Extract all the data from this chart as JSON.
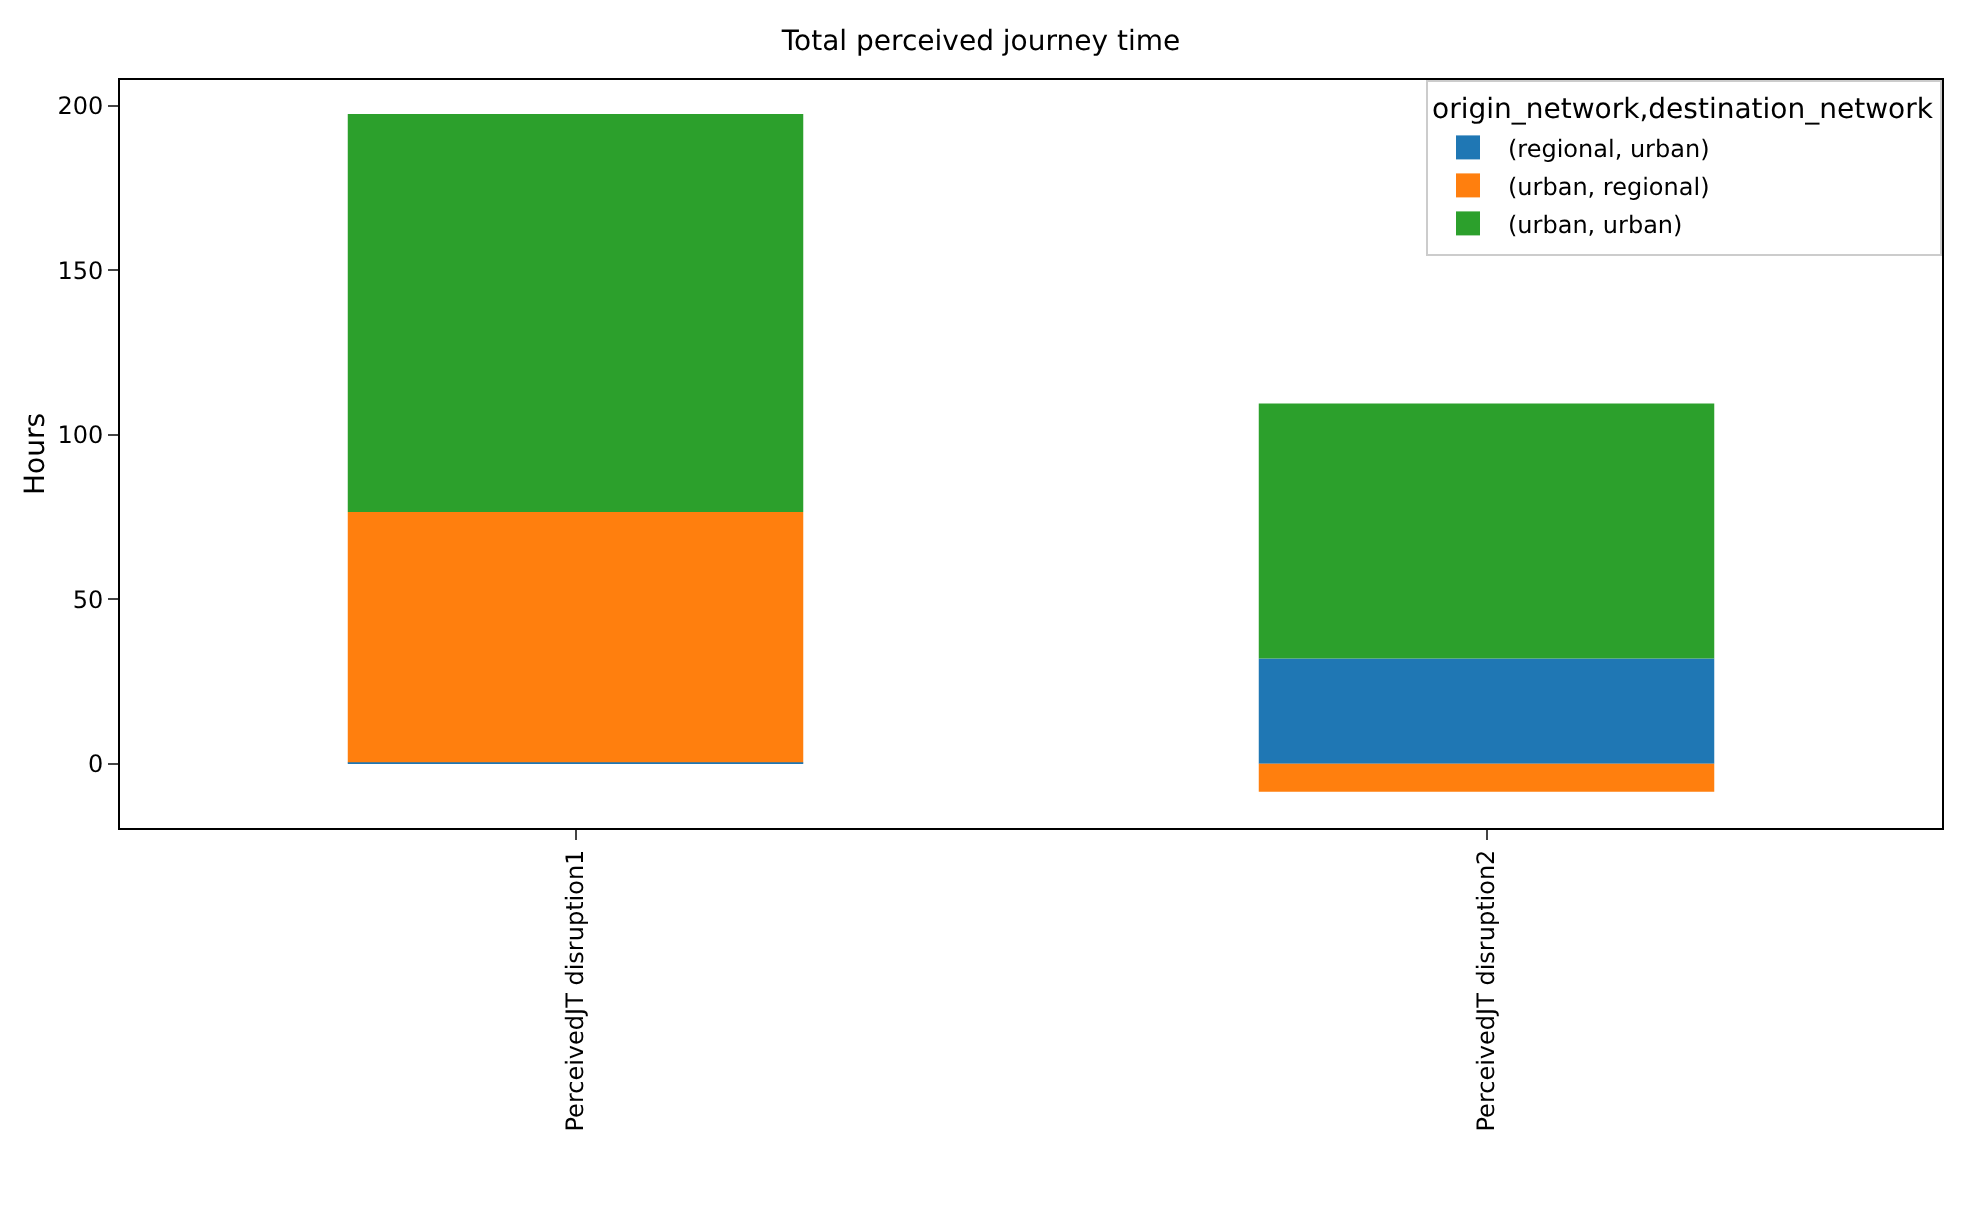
{
  "chart_data": {
    "type": "bar",
    "title": "Total perceived journey time",
    "ylabel": "Hours",
    "legend_title": "origin_network,destination_network",
    "categories": [
      "PerceivedJT disruption1",
      "PerceivedJT disruption2"
    ],
    "series": [
      {
        "name": "(regional, urban)",
        "color": "#1f77b4",
        "values": [
          0.5,
          32
        ]
      },
      {
        "name": "(urban, regional)",
        "color": "#ff7f0e",
        "values": [
          76,
          -8.5
        ]
      },
      {
        "name": "(urban, urban)",
        "color": "#2ca02c",
        "values": [
          121,
          77.5
        ]
      }
    ],
    "stacked": true,
    "ylim": [
      -19.5,
      207.8
    ],
    "yticks": [
      0,
      50,
      100,
      150,
      200
    ],
    "grid": false,
    "legend": "top right"
  }
}
